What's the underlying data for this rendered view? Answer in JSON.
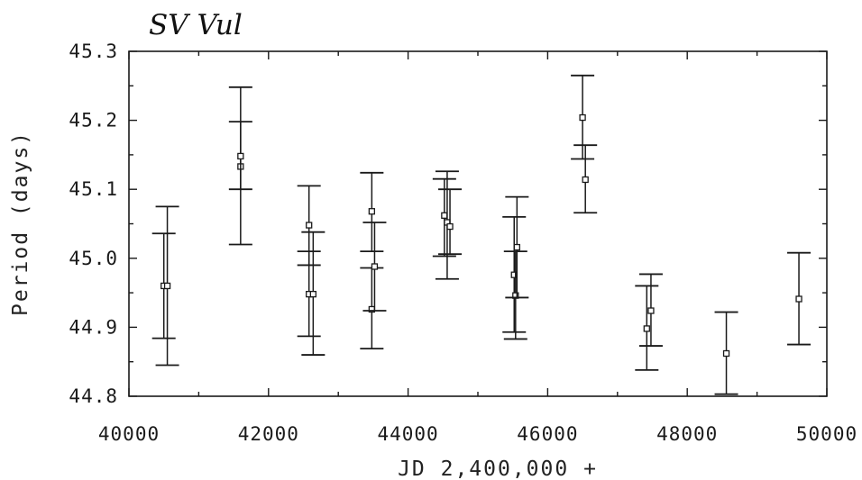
{
  "chart_data": {
    "type": "scatter",
    "title": "SV Vul",
    "xlabel": "JD 2,400,000 +",
    "ylabel": "Period (days)",
    "xlim": [
      40000,
      50000
    ],
    "ylim": [
      44.8,
      45.3
    ],
    "x_ticks": [
      "40000",
      "42000",
      "44000",
      "46000",
      "48000",
      "50000"
    ],
    "y_ticks": [
      "44.8",
      "44.9",
      "45.0",
      "45.1",
      "45.2",
      "45.3"
    ],
    "grid": false,
    "markers": "open-square",
    "points": [
      {
        "x": 40500,
        "y": 44.96,
        "ylow": 44.884,
        "yhigh": 45.036
      },
      {
        "x": 40550,
        "y": 44.96,
        "ylow": 44.845,
        "yhigh": 45.075
      },
      {
        "x": 41600,
        "y": 45.133,
        "ylow": 45.02,
        "yhigh": 45.248
      },
      {
        "x": 41600,
        "y": 45.148,
        "ylow": 45.1,
        "yhigh": 45.198
      },
      {
        "x": 42580,
        "y": 44.948,
        "ylow": 44.887,
        "yhigh": 45.01
      },
      {
        "x": 42580,
        "y": 45.048,
        "ylow": 44.99,
        "yhigh": 45.105
      },
      {
        "x": 42640,
        "y": 44.948,
        "ylow": 44.86,
        "yhigh": 45.038
      },
      {
        "x": 43480,
        "y": 44.926,
        "ylow": 44.869,
        "yhigh": 44.986
      },
      {
        "x": 43480,
        "y": 45.068,
        "ylow": 45.01,
        "yhigh": 45.124
      },
      {
        "x": 43520,
        "y": 44.988,
        "ylow": 44.924,
        "yhigh": 45.052
      },
      {
        "x": 44520,
        "y": 45.062,
        "ylow": 45.003,
        "yhigh": 45.115
      },
      {
        "x": 44560,
        "y": 45.052,
        "ylow": 44.97,
        "yhigh": 45.126
      },
      {
        "x": 44600,
        "y": 45.046,
        "ylow": 45.006,
        "yhigh": 45.1
      },
      {
        "x": 45520,
        "y": 44.976,
        "ylow": 44.893,
        "yhigh": 45.06
      },
      {
        "x": 45540,
        "y": 44.946,
        "ylow": 44.883,
        "yhigh": 45.01
      },
      {
        "x": 45560,
        "y": 45.016,
        "ylow": 44.943,
        "yhigh": 45.089
      },
      {
        "x": 46500,
        "y": 45.204,
        "ylow": 45.144,
        "yhigh": 45.265
      },
      {
        "x": 46540,
        "y": 45.114,
        "ylow": 45.066,
        "yhigh": 45.164
      },
      {
        "x": 47420,
        "y": 44.898,
        "ylow": 44.838,
        "yhigh": 44.96
      },
      {
        "x": 47480,
        "y": 44.924,
        "ylow": 44.873,
        "yhigh": 44.977
      },
      {
        "x": 48560,
        "y": 44.862,
        "ylow": 44.803,
        "yhigh": 44.922
      },
      {
        "x": 49600,
        "y": 44.941,
        "ylow": 44.875,
        "yhigh": 45.008
      }
    ]
  }
}
